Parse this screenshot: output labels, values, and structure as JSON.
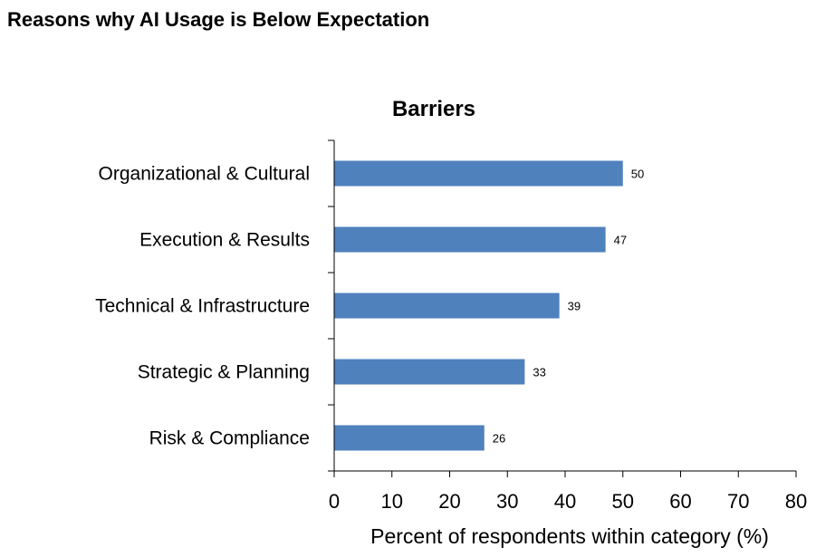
{
  "page_title": "Reasons why AI Usage is Below Expectation",
  "chart_data": {
    "type": "bar",
    "orientation": "horizontal",
    "title": "Barriers",
    "categories": [
      "Organizational & Cultural",
      "Execution & Results",
      "Technical & Infrastructure",
      "Strategic & Planning",
      "Risk & Compliance"
    ],
    "values": [
      50,
      47,
      39,
      33,
      26
    ],
    "data_labels": [
      "50",
      "47",
      "39",
      "33",
      "26"
    ],
    "xlabel": "Percent of respondents within category (%)",
    "ylabel": "",
    "xlim": [
      0,
      80
    ],
    "xticks": [
      "0",
      "10",
      "20",
      "30",
      "40",
      "50",
      "60",
      "70",
      "80"
    ],
    "grid": false,
    "bar_color": "#4F81BD"
  }
}
